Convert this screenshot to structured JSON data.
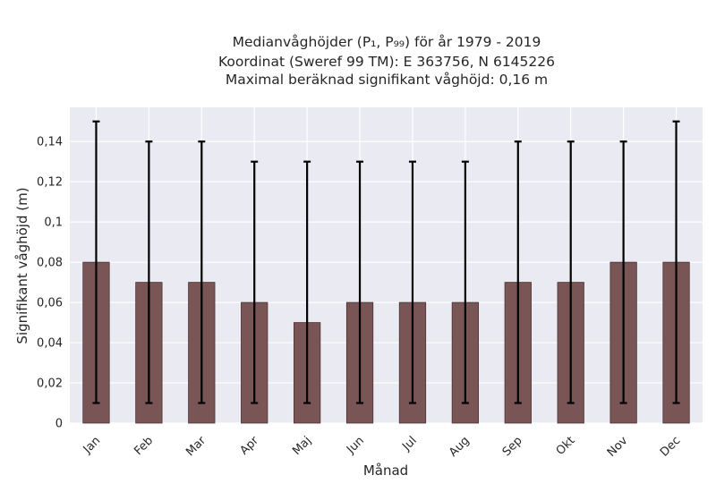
{
  "chart_data": {
    "type": "bar",
    "title_lines": [
      "Medianvåghöjder (P₁, P₉₉) för år 1979 - 2019",
      "Koordinat (Sweref 99 TM): E 363756, N 6145226",
      "Maximal beräknad signifikant våghöjd: 0,16 m"
    ],
    "xlabel": "Månad",
    "ylabel": "Signifikant våghöjd (m)",
    "categories": [
      "Jan",
      "Feb",
      "Mar",
      "Apr",
      "Maj",
      "Jun",
      "Jul",
      "Aug",
      "Sep",
      "Okt",
      "Nov",
      "Dec"
    ],
    "values": [
      0.08,
      0.07,
      0.07,
      0.06,
      0.05,
      0.06,
      0.06,
      0.06,
      0.07,
      0.07,
      0.08,
      0.08
    ],
    "error_low": [
      0.01,
      0.01,
      0.01,
      0.01,
      0.01,
      0.01,
      0.01,
      0.01,
      0.01,
      0.01,
      0.01,
      0.01
    ],
    "error_high": [
      0.15,
      0.14,
      0.14,
      0.13,
      0.13,
      0.13,
      0.13,
      0.13,
      0.14,
      0.14,
      0.14,
      0.15
    ],
    "ylim": [
      0,
      0.157
    ],
    "yticks": [
      0,
      0.02,
      0.04,
      0.06,
      0.08,
      0.1,
      0.12,
      0.14
    ],
    "ytick_labels": [
      "0",
      "0,02",
      "0,04",
      "0,06",
      "0,08",
      "0,1",
      "0,12",
      "0,14"
    ],
    "grid": true,
    "colors": {
      "bar": "#7a5555",
      "bar_edge": "#4a3333",
      "error": "#000000",
      "plot_bg": "#eaeaf2",
      "grid": "#ffffff"
    }
  }
}
